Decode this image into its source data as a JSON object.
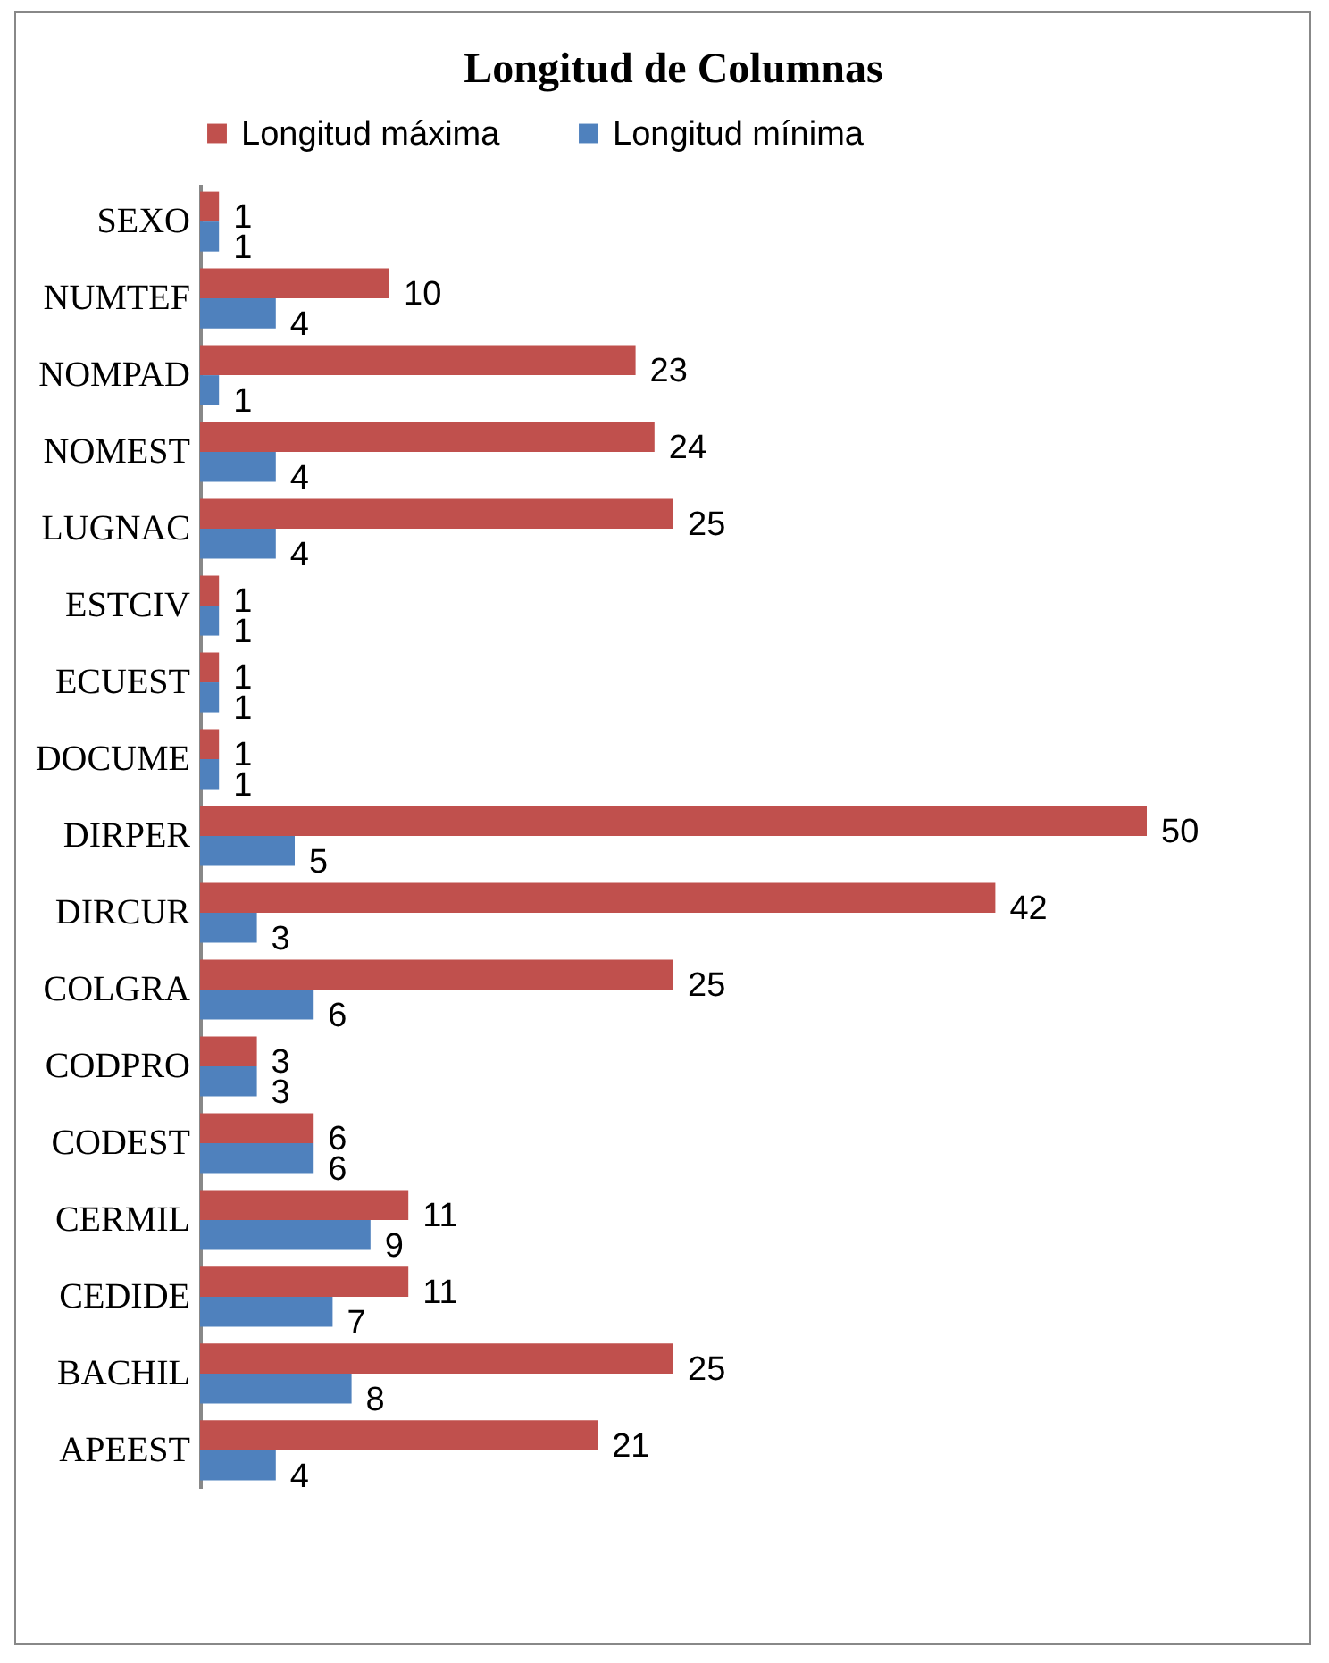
{
  "chart_data": {
    "type": "bar",
    "orientation": "horizontal",
    "title": "Longitud de Columnas",
    "categories": [
      "SEXO",
      "NUMTEF",
      "NOMPAD",
      "NOMEST",
      "LUGNAC",
      "ESTCIV",
      "ECUEST",
      "DOCUME",
      "DIRPER",
      "DIRCUR",
      "COLGRA",
      "CODPRO",
      "CODEST",
      "CERMIL",
      "CEDIDE",
      "BACHIL",
      "APEEST"
    ],
    "series": [
      {
        "name": "Longitud máxima",
        "color": "#c0504d",
        "values": [
          1,
          10,
          23,
          24,
          25,
          1,
          1,
          1,
          50,
          42,
          25,
          3,
          6,
          11,
          11,
          25,
          21
        ]
      },
      {
        "name": "Longitud mínima",
        "color": "#4f81bd",
        "values": [
          1,
          4,
          1,
          4,
          4,
          1,
          1,
          1,
          5,
          3,
          6,
          3,
          6,
          9,
          7,
          8,
          4
        ]
      }
    ],
    "data_labels": true,
    "legend": "top",
    "tick_labels": "y"
  }
}
